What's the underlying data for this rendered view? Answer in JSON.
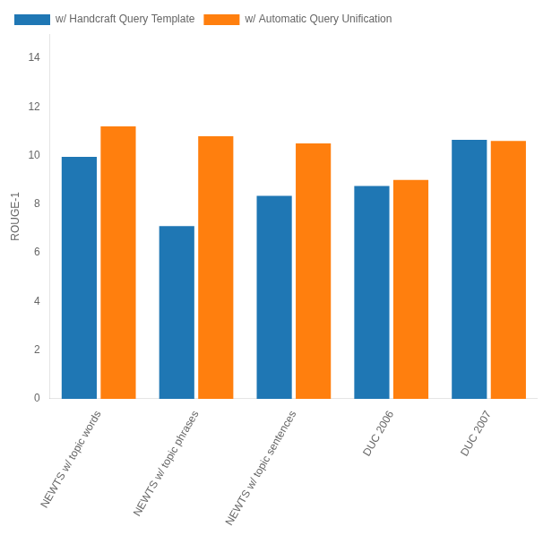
{
  "chart_data": {
    "type": "bar",
    "categories": [
      "NEWTS w/ topic words",
      "NEWTS w/ topic phrases",
      "NEWTS w/ topic sentences",
      "DUC 2006",
      "DUC 2007"
    ],
    "series": [
      {
        "name": "w/ Handcraft Query Template",
        "color": "#1f77b4",
        "values": [
          9.95,
          7.1,
          8.35,
          8.75,
          10.65
        ]
      },
      {
        "name": "w/ Automatic Query Unification",
        "color": "#ff7f0e",
        "values": [
          11.2,
          10.8,
          10.5,
          9.0,
          10.6
        ]
      }
    ],
    "ylabel": "ROUGE-1",
    "ylim": [
      0,
      15
    ],
    "yticks": [
      0,
      2,
      4,
      6,
      8,
      10,
      12,
      14
    ],
    "grid": false,
    "legend": "upper left"
  }
}
